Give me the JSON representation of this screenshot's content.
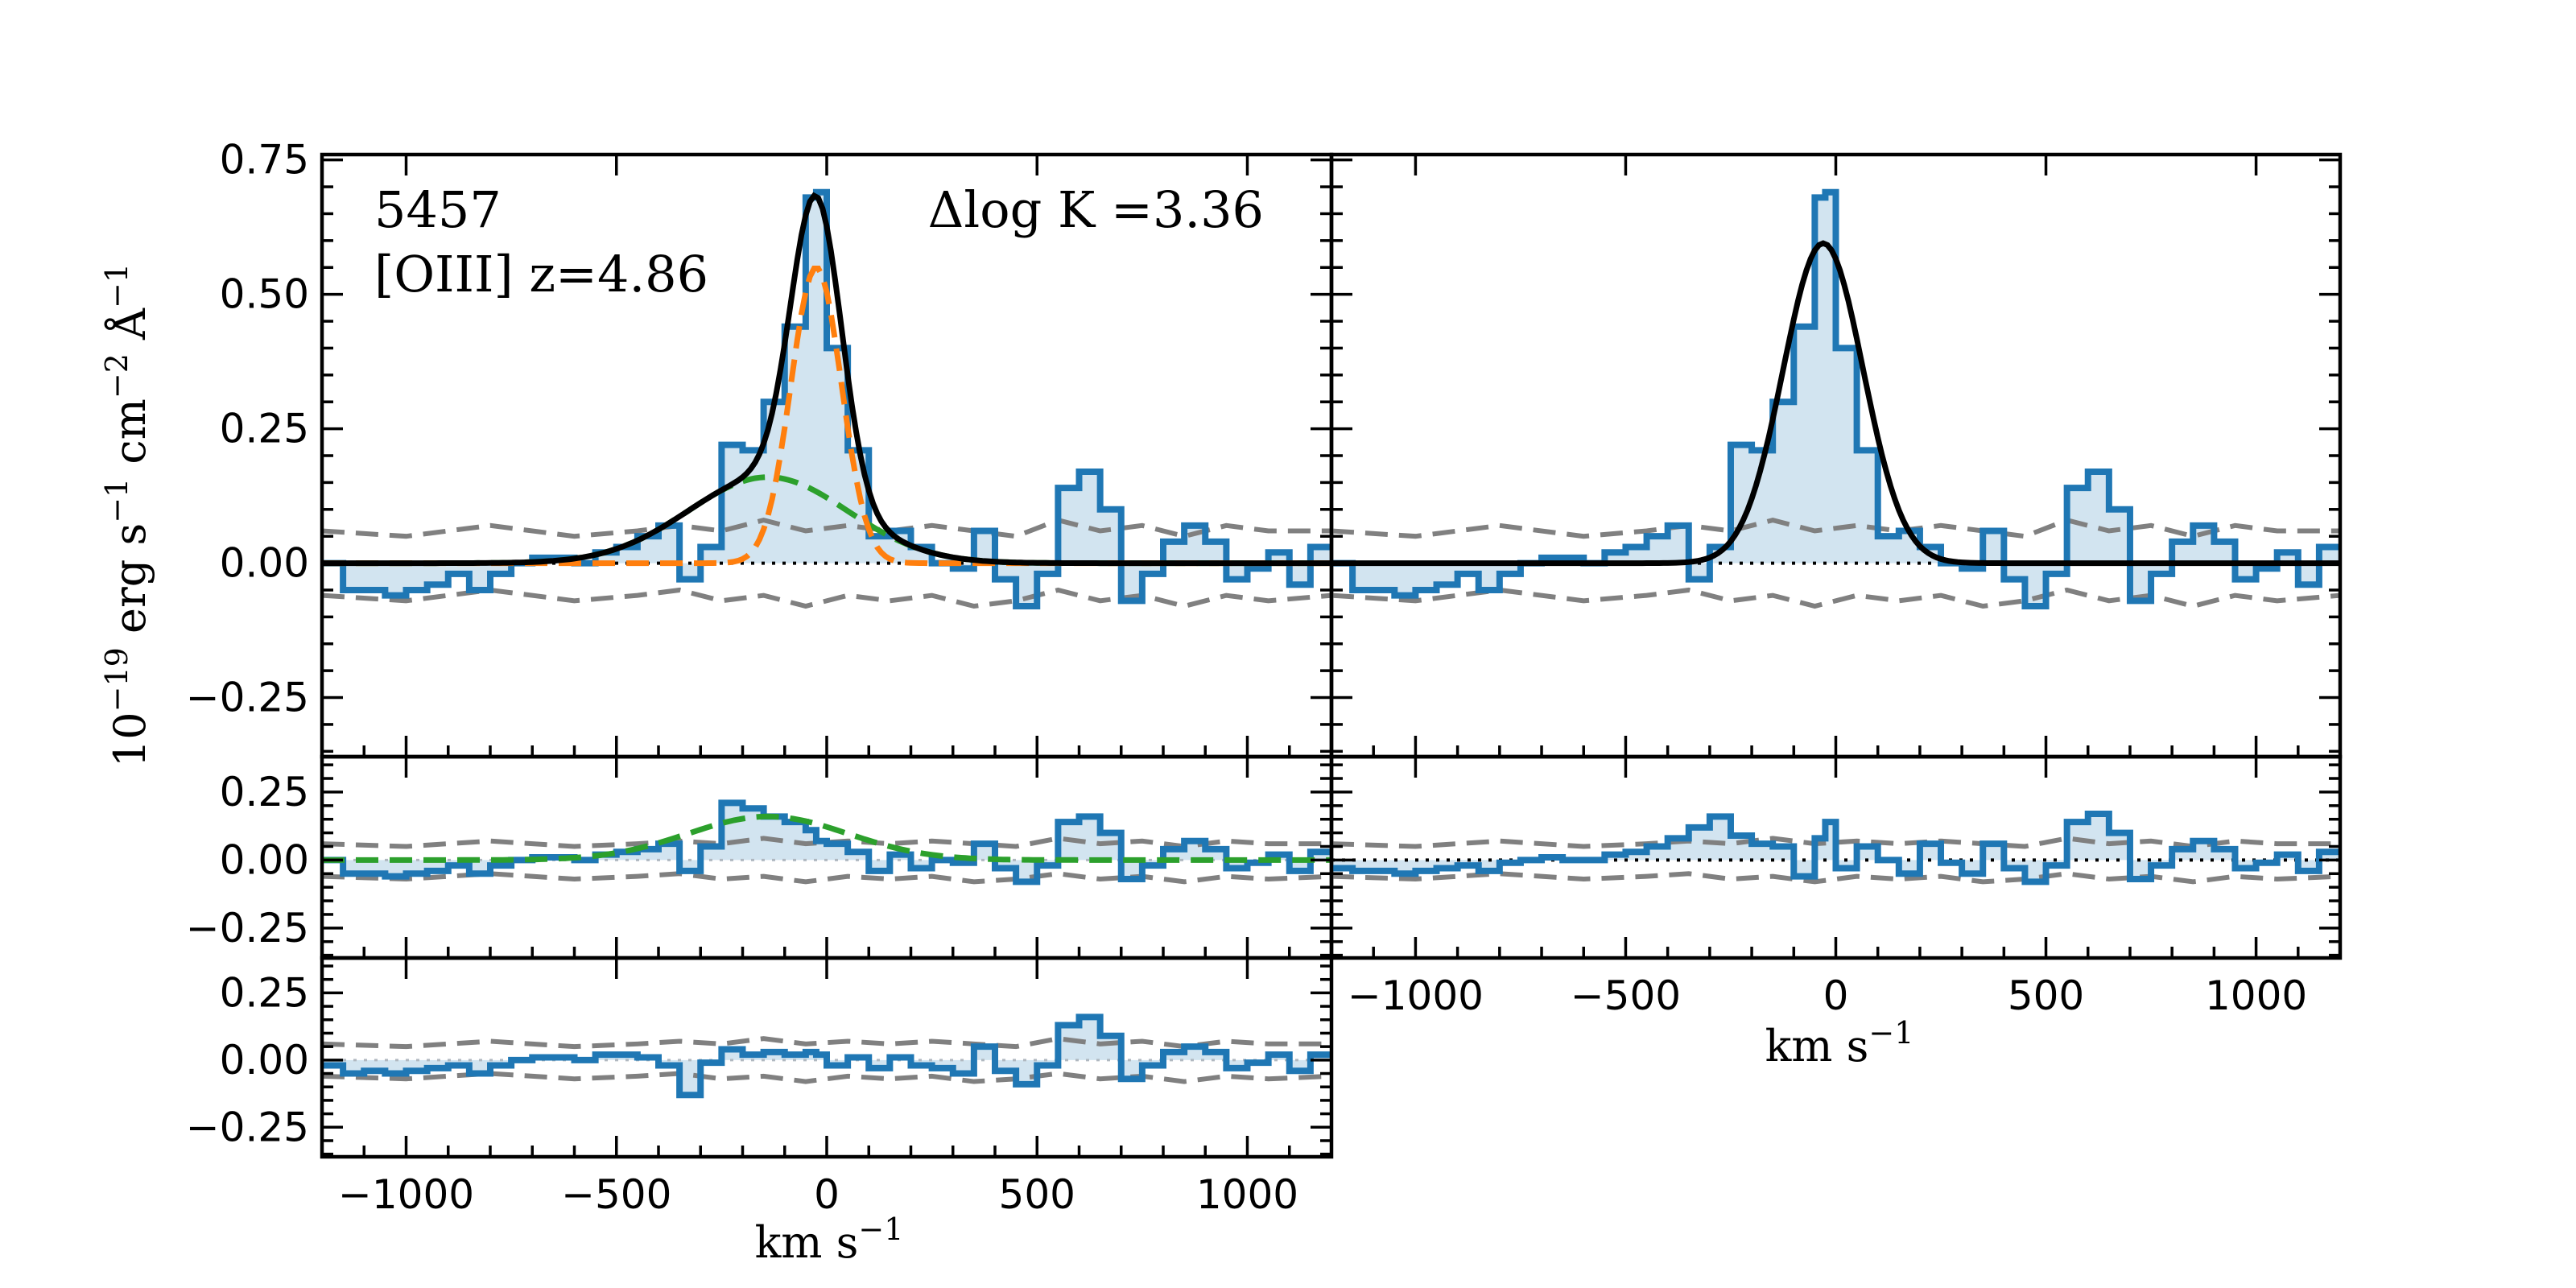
{
  "chart_data": {
    "type": "line",
    "title": "",
    "object": {
      "id_label": "5457",
      "line_label": "[OIII] z=4.86",
      "delta_label": "Δlog K =3.36"
    },
    "ylabel": "10^-19 erg s^-1 cm^-2 Å^-1",
    "ylabel_parts": {
      "base": "10",
      "exp1": "−19",
      "erg": " erg s",
      "exp2": "−1",
      "cm": " cm",
      "exp3": "−2",
      "ang": " Å",
      "exp4": "−1"
    },
    "xlabel_parts": {
      "base": "km s",
      "exp": "−1"
    },
    "xlim": [
      -1200,
      1200
    ],
    "panels": [
      {
        "name": "top-left",
        "ylim": [
          -0.36,
          0.76
        ],
        "yticks": [
          -0.25,
          0.0,
          0.25,
          0.5,
          0.75
        ],
        "ytick_labels": [
          "−0.25",
          "0.00",
          "0.25",
          "0.50",
          "0.75"
        ]
      },
      {
        "name": "top-right",
        "ylim": [
          -0.36,
          0.76
        ]
      },
      {
        "name": "mid-left",
        "ylim": [
          -0.36,
          0.38
        ],
        "yticks": [
          -0.25,
          0.0,
          0.25
        ],
        "ytick_labels": [
          "−0.25",
          "0.00",
          "0.25"
        ]
      },
      {
        "name": "mid-right",
        "ylim": [
          -0.36,
          0.38
        ]
      },
      {
        "name": "bottom-left",
        "ylim": [
          -0.36,
          0.38
        ],
        "yticks": [
          -0.25,
          0.0,
          0.25
        ],
        "ytick_labels": [
          "−0.25",
          "0.00",
          "0.25"
        ]
      }
    ],
    "xticks": [
      -1000,
      -500,
      0,
      500,
      1000
    ],
    "xtick_labels": [
      "−1000",
      "−500",
      "0",
      "500",
      "1000"
    ],
    "bin_edges": [
      -1200,
      -1150,
      -1100,
      -1050,
      -1000,
      -950,
      -900,
      -850,
      -800,
      -750,
      -700,
      -650,
      -600,
      -550,
      -500,
      -450,
      -400,
      -350,
      -300,
      -250,
      -200,
      -150,
      -100,
      -50,
      -25,
      0,
      50,
      100,
      150,
      200,
      250,
      300,
      350,
      400,
      450,
      500,
      550,
      600,
      650,
      700,
      750,
      800,
      850,
      900,
      950,
      1000,
      1050,
      1100,
      1150,
      1200
    ],
    "series": [
      {
        "name": "flux",
        "values": [
          0.0,
          -0.05,
          -0.05,
          -0.06,
          -0.05,
          -0.04,
          -0.02,
          -0.05,
          -0.02,
          0.0,
          0.01,
          0.01,
          0.0,
          0.02,
          0.03,
          0.05,
          0.07,
          -0.03,
          0.03,
          0.22,
          0.21,
          0.3,
          0.44,
          0.68,
          0.69,
          0.4,
          0.21,
          0.05,
          0.06,
          0.03,
          0.0,
          -0.01,
          0.06,
          -0.03,
          -0.08,
          -0.02,
          0.14,
          0.17,
          0.1,
          -0.07,
          -0.02,
          0.04,
          0.07,
          0.04,
          -0.03,
          -0.01,
          0.02,
          -0.04,
          0.03
        ]
      },
      {
        "name": "residual-narrow",
        "values": [
          0.0,
          -0.05,
          -0.05,
          -0.06,
          -0.05,
          -0.04,
          -0.02,
          -0.05,
          -0.02,
          0.0,
          0.01,
          0.01,
          0.0,
          0.02,
          0.03,
          0.04,
          0.06,
          -0.04,
          0.05,
          0.21,
          0.19,
          0.16,
          0.14,
          0.11,
          0.07,
          0.06,
          0.03,
          -0.04,
          0.02,
          -0.03,
          0.0,
          -0.01,
          0.06,
          -0.03,
          -0.08,
          -0.02,
          0.14,
          0.16,
          0.1,
          -0.07,
          -0.02,
          0.04,
          0.07,
          0.04,
          -0.03,
          -0.01,
          0.02,
          -0.04,
          0.03
        ]
      },
      {
        "name": "residual-single",
        "values": [
          -0.03,
          -0.04,
          -0.04,
          -0.05,
          -0.04,
          -0.03,
          -0.02,
          -0.04,
          -0.01,
          0.0,
          0.01,
          0.0,
          0.0,
          0.02,
          0.03,
          0.05,
          0.08,
          0.12,
          0.16,
          0.09,
          0.06,
          0.05,
          -0.06,
          0.08,
          0.14,
          -0.03,
          0.05,
          0.0,
          -0.05,
          0.06,
          -0.01,
          -0.05,
          0.06,
          -0.03,
          -0.08,
          -0.02,
          0.14,
          0.17,
          0.1,
          -0.07,
          -0.02,
          0.04,
          0.07,
          0.04,
          -0.03,
          -0.01,
          0.02,
          -0.04,
          0.03
        ]
      },
      {
        "name": "residual-total",
        "values": [
          -0.02,
          -0.05,
          -0.04,
          -0.05,
          -0.04,
          -0.03,
          -0.02,
          -0.05,
          -0.02,
          0.0,
          0.01,
          0.01,
          0.0,
          0.02,
          0.02,
          0.01,
          -0.02,
          -0.13,
          -0.01,
          0.04,
          0.02,
          0.03,
          0.02,
          0.03,
          0.02,
          -0.02,
          0.01,
          -0.03,
          0.01,
          -0.02,
          -0.03,
          -0.05,
          0.05,
          -0.04,
          -0.09,
          -0.02,
          0.13,
          0.16,
          0.09,
          -0.07,
          -0.02,
          0.03,
          0.05,
          0.03,
          -0.03,
          -0.01,
          0.02,
          -0.04,
          0.02
        ]
      }
    ],
    "noise_envelope": {
      "x": [
        -1200,
        -1000,
        -800,
        -600,
        -450,
        -350,
        -250,
        -150,
        -50,
        50,
        150,
        250,
        350,
        450,
        550,
        650,
        750,
        850,
        950,
        1050,
        1200
      ],
      "upper": [
        0.06,
        0.05,
        0.07,
        0.05,
        0.06,
        0.07,
        0.06,
        0.08,
        0.06,
        0.07,
        0.06,
        0.07,
        0.06,
        0.05,
        0.08,
        0.06,
        0.07,
        0.05,
        0.07,
        0.06,
        0.06
      ],
      "lower": [
        -0.06,
        -0.07,
        -0.05,
        -0.07,
        -0.06,
        -0.05,
        -0.07,
        -0.06,
        -0.08,
        -0.06,
        -0.07,
        -0.06,
        -0.08,
        -0.07,
        -0.05,
        -0.07,
        -0.06,
        -0.08,
        -0.06,
        -0.07,
        -0.06
      ]
    },
    "models": {
      "narrow": {
        "amp": 0.55,
        "center": -25,
        "sigma": 60,
        "color": "#ff7f0e"
      },
      "broad": {
        "amp": 0.16,
        "center": -140,
        "sigma": 190,
        "color": "#2ca02c"
      },
      "single": {
        "amp": 0.595,
        "center": -30,
        "sigma": 95,
        "color": "#000000"
      }
    },
    "colors": {
      "data": "#1f77b4",
      "noise": "#808080",
      "total": "#000000"
    }
  }
}
